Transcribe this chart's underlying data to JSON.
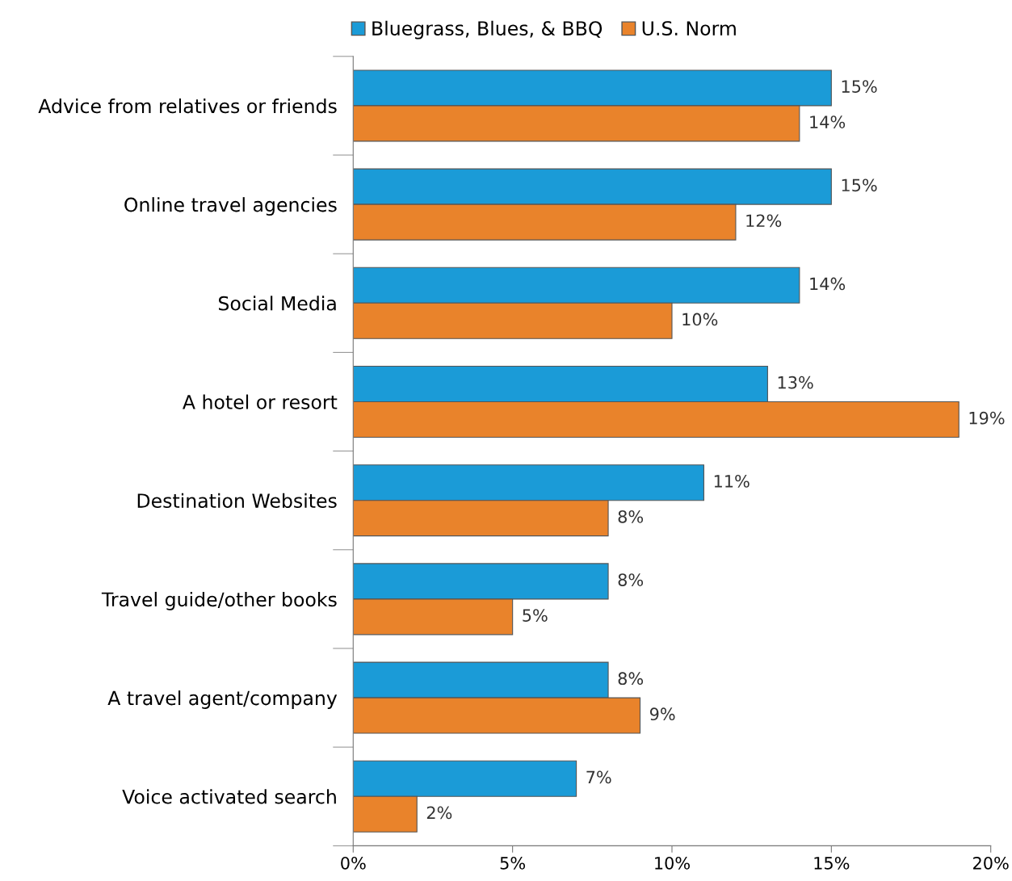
{
  "chart_data": {
    "type": "bar",
    "orientation": "horizontal",
    "categories": [
      "Advice from relatives or friends",
      "Online travel agencies",
      "Social Media",
      "A hotel or resort",
      "Destination Websites",
      "Travel guide/other books",
      "A travel agent/company",
      "Voice activated search"
    ],
    "series": [
      {
        "name": "Bluegrass, Blues, & BBQ",
        "color": "#1b9bd7",
        "values": [
          15,
          15,
          14,
          13,
          11,
          8,
          8,
          7
        ],
        "value_labels": [
          "15%",
          "15%",
          "14%",
          "13%",
          "11%",
          "8%",
          "8%",
          "7%"
        ]
      },
      {
        "name": "U.S. Norm",
        "color": "#e9832b",
        "values": [
          14,
          12,
          10,
          19,
          8,
          5,
          9,
          2
        ],
        "value_labels": [
          "14%",
          "12%",
          "10%",
          "19%",
          "8%",
          "5%",
          "9%",
          "2%"
        ]
      }
    ],
    "xlim": [
      0,
      20
    ],
    "xticks": [
      {
        "value": 0,
        "label": "0%"
      },
      {
        "value": 5,
        "label": "5%"
      },
      {
        "value": 10,
        "label": "10%"
      },
      {
        "value": 15,
        "label": "15%"
      },
      {
        "value": 20,
        "label": "20%"
      }
    ],
    "grid": false,
    "legend": "top"
  }
}
